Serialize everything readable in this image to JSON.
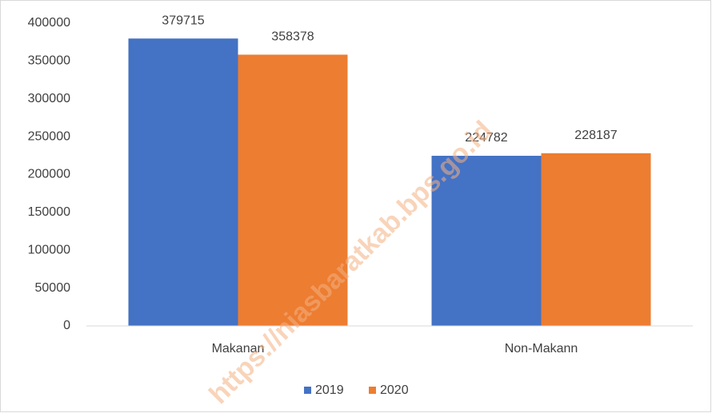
{
  "chart_data": {
    "type": "bar",
    "categories": [
      "Makanan",
      "Non-Makann"
    ],
    "series": [
      {
        "name": "2019",
        "color": "#4472c4",
        "values": [
          379715,
          224782
        ]
      },
      {
        "name": "2020",
        "color": "#ed7d31",
        "values": [
          358378,
          228187
        ]
      }
    ],
    "ylim": [
      0,
      400000
    ],
    "yticks": [
      0,
      50000,
      100000,
      150000,
      200000,
      250000,
      300000,
      350000,
      400000
    ],
    "grid": false,
    "legend": "bottom",
    "watermark": "https://niasbaratkab.bps.go.id"
  }
}
